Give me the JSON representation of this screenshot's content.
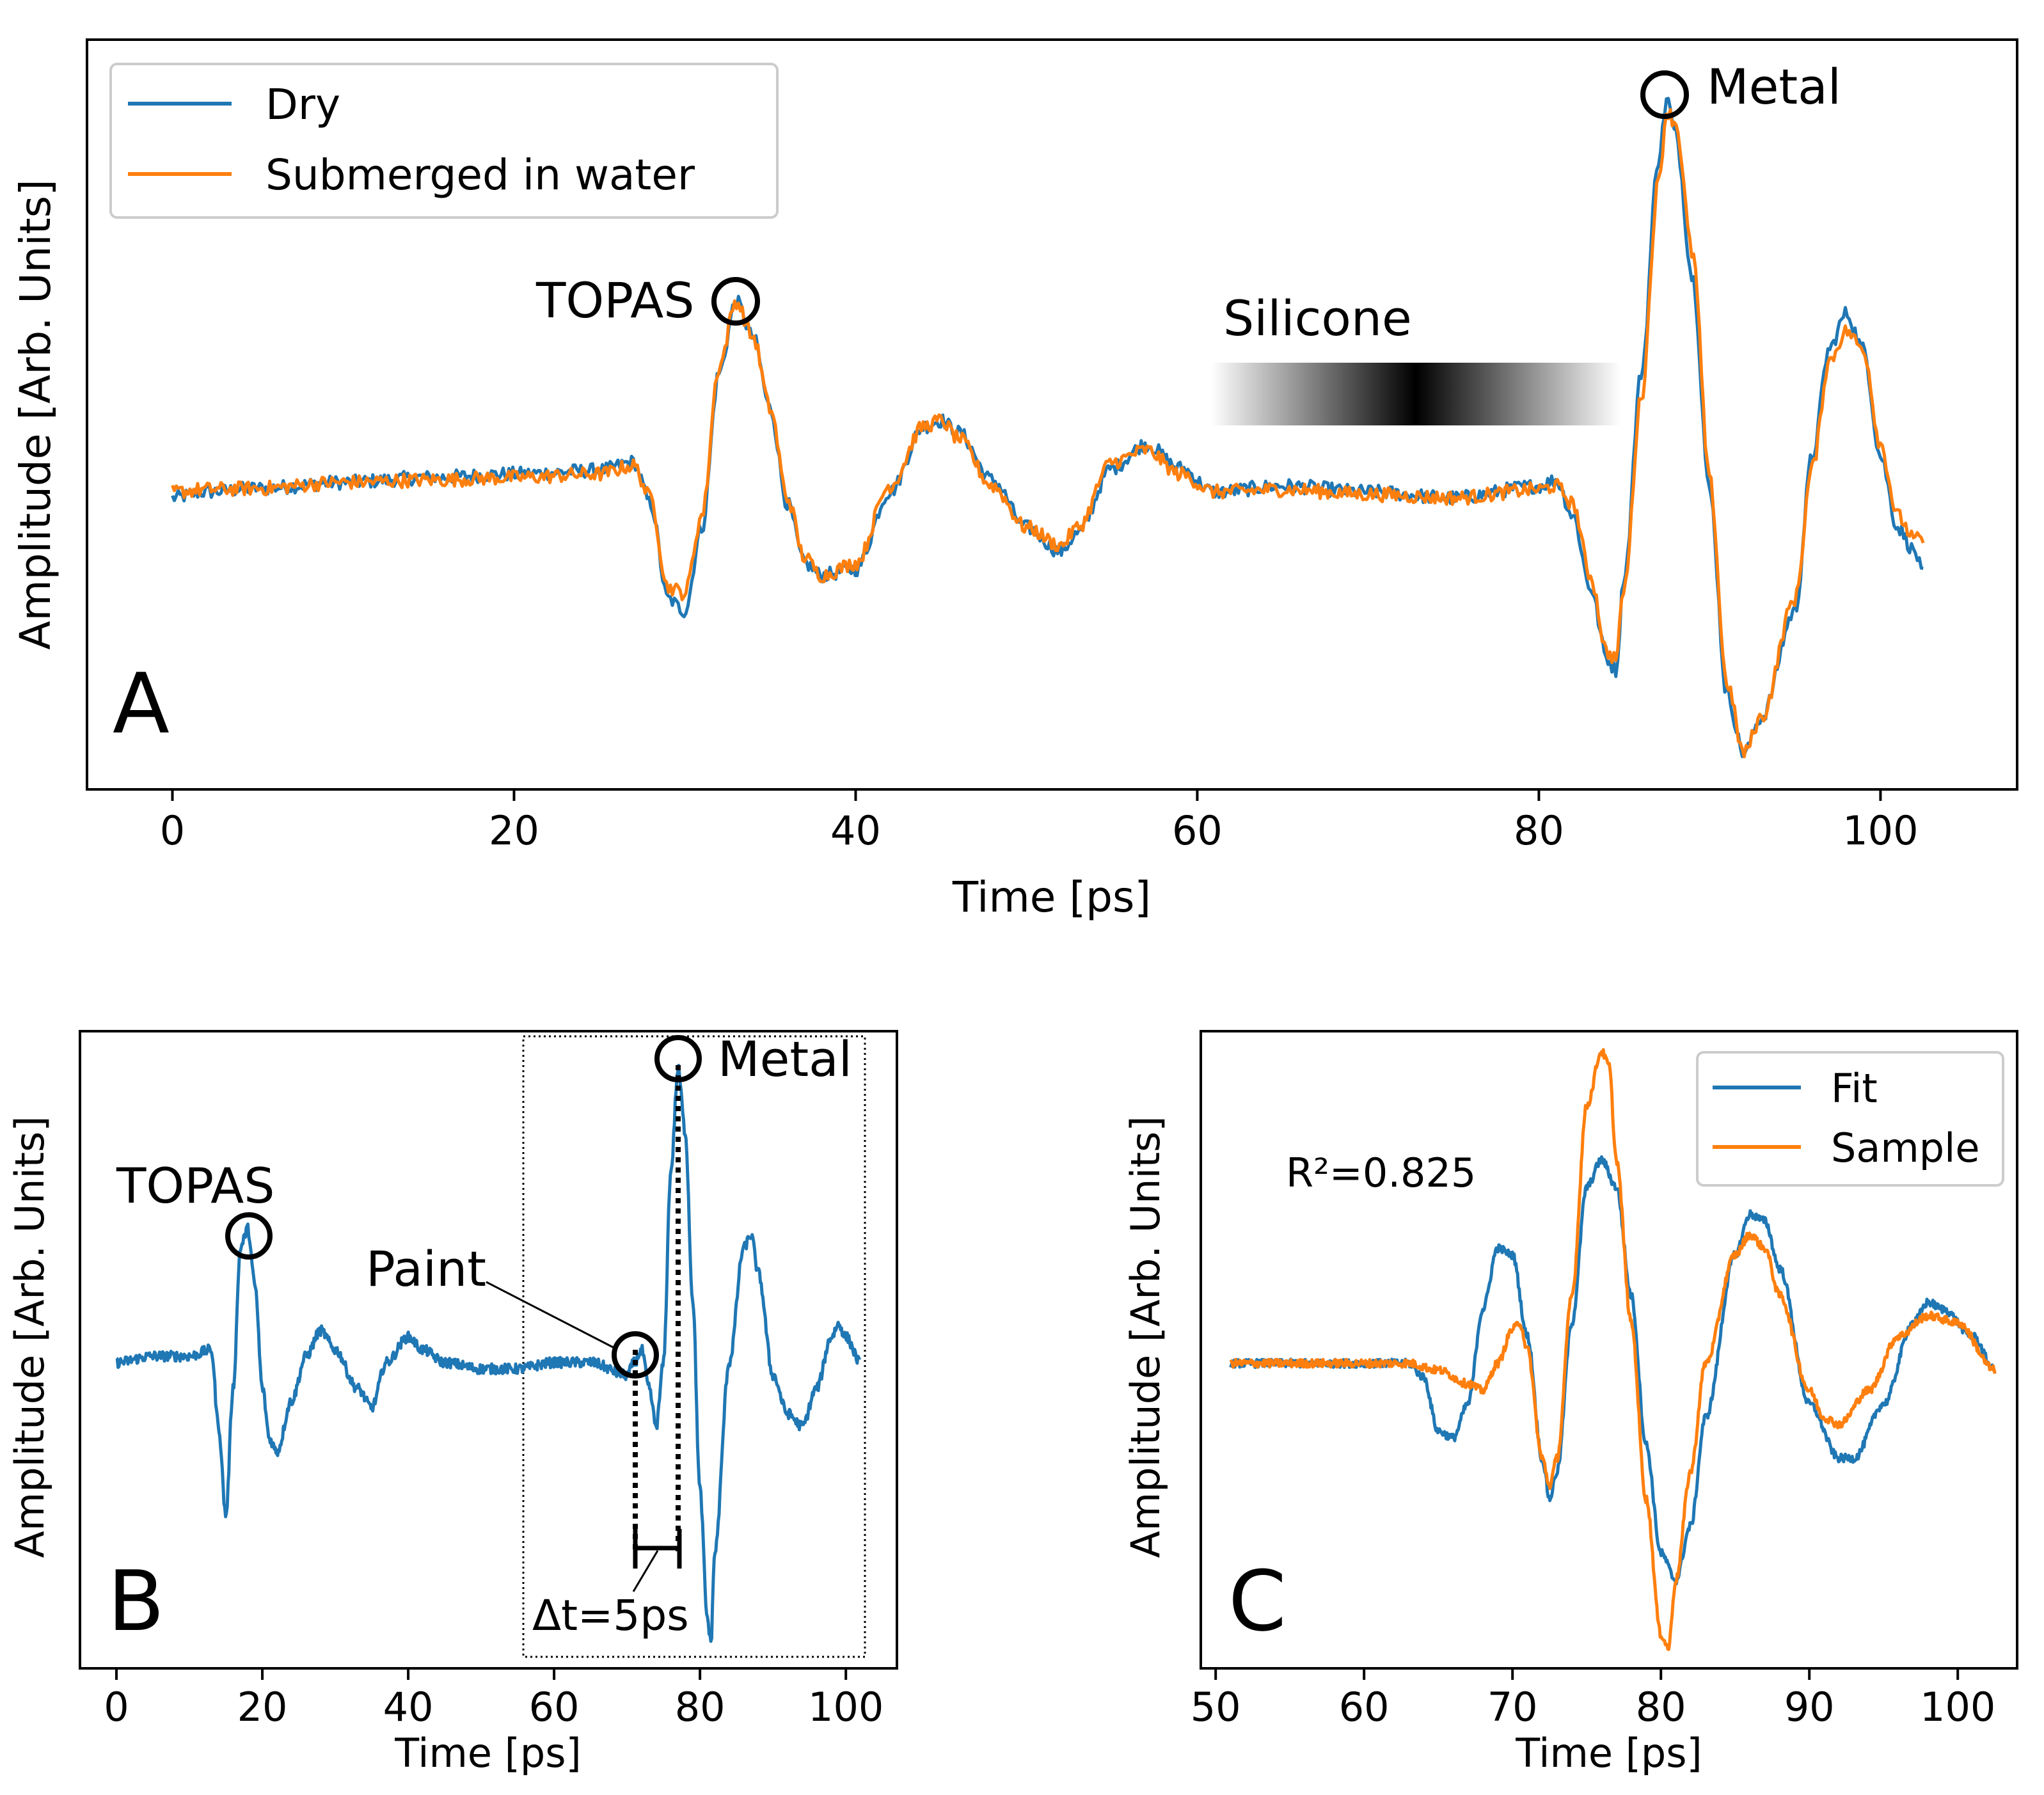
{
  "colors": {
    "dry": "#1f77b4",
    "water": "#ff7f0e",
    "fit": "#1f77b4",
    "sample": "#ff7f0e"
  },
  "chart_data": [
    {
      "type": "line",
      "panel": "A",
      "xlabel": "Time [ps]",
      "ylabel": "Amplitude [Arb. Units]",
      "xlim": [
        -5,
        108
      ],
      "ylim": [
        -2.5,
        3.8
      ],
      "xticks": [
        0,
        20,
        40,
        60,
        80,
        100
      ],
      "legend": {
        "placement": "top-left"
      },
      "annotations": {
        "topas": "TOPAS",
        "silicone": "Silicone",
        "metal": "Metal"
      },
      "series": [
        {
          "name": "Dry",
          "keypoints": [
            [
              0,
              -0.05
            ],
            [
              2,
              0
            ],
            [
              5,
              0.03
            ],
            [
              10,
              0.08
            ],
            [
              15,
              0.12
            ],
            [
              20,
              0.15
            ],
            [
              25,
              0.18
            ],
            [
              27,
              0.25
            ],
            [
              28,
              -0.1
            ],
            [
              29,
              -0.9
            ],
            [
              30,
              -1.0
            ],
            [
              31,
              -0.3
            ],
            [
              32,
              1.0
            ],
            [
              33,
              1.6
            ],
            [
              34,
              1.3
            ],
            [
              35,
              0.7
            ],
            [
              36,
              -0.1
            ],
            [
              37,
              -0.6
            ],
            [
              38,
              -0.7
            ],
            [
              40,
              -0.65
            ],
            [
              42,
              0
            ],
            [
              44,
              0.55
            ],
            [
              45,
              0.6
            ],
            [
              46,
              0.5
            ],
            [
              48,
              0.1
            ],
            [
              50,
              -0.3
            ],
            [
              52,
              -0.5
            ],
            [
              53,
              -0.35
            ],
            [
              55,
              0.2
            ],
            [
              57,
              0.4
            ],
            [
              59,
              0.2
            ],
            [
              61,
              0
            ],
            [
              65,
              0.05
            ],
            [
              70,
              0
            ],
            [
              75,
              -0.05
            ],
            [
              80,
              0.05
            ],
            [
              81,
              0.1
            ],
            [
              82,
              -0.2
            ],
            [
              83,
              -0.8
            ],
            [
              84,
              -1.4
            ],
            [
              84.5,
              -1.5
            ],
            [
              85,
              -0.7
            ],
            [
              86,
              1.0
            ],
            [
              87,
              2.8
            ],
            [
              87.5,
              3.3
            ],
            [
              88,
              3.0
            ],
            [
              89,
              1.8
            ],
            [
              90,
              0
            ],
            [
              91,
              -1.7
            ],
            [
              92,
              -2.2
            ],
            [
              93,
              -1.9
            ],
            [
              95,
              -1.0
            ],
            [
              96,
              0.3
            ],
            [
              97,
              1.2
            ],
            [
              98,
              1.5
            ],
            [
              99,
              1.2
            ],
            [
              100,
              0.3
            ],
            [
              101,
              -0.3
            ],
            [
              102,
              -0.5
            ],
            [
              102.5,
              -0.7
            ]
          ]
        },
        {
          "name": "Submerged in water",
          "keypoints": [
            [
              0,
              0
            ],
            [
              2,
              0.02
            ],
            [
              5,
              0.03
            ],
            [
              10,
              0.08
            ],
            [
              15,
              0.1
            ],
            [
              20,
              0.12
            ],
            [
              25,
              0.15
            ],
            [
              27,
              0.22
            ],
            [
              28,
              -0.05
            ],
            [
              29,
              -0.8
            ],
            [
              30,
              -0.85
            ],
            [
              31,
              -0.2
            ],
            [
              32,
              1.05
            ],
            [
              33,
              1.6
            ],
            [
              34,
              1.3
            ],
            [
              35,
              0.7
            ],
            [
              36,
              -0.05
            ],
            [
              37,
              -0.55
            ],
            [
              38,
              -0.7
            ],
            [
              40,
              -0.6
            ],
            [
              42,
              0.05
            ],
            [
              44,
              0.55
            ],
            [
              45,
              0.6
            ],
            [
              46,
              0.45
            ],
            [
              48,
              0.05
            ],
            [
              50,
              -0.3
            ],
            [
              52,
              -0.45
            ],
            [
              53,
              -0.3
            ],
            [
              55,
              0.25
            ],
            [
              57,
              0.35
            ],
            [
              59,
              0.15
            ],
            [
              61,
              0
            ],
            [
              65,
              0.02
            ],
            [
              70,
              -0.02
            ],
            [
              75,
              -0.05
            ],
            [
              80,
              0.02
            ],
            [
              81,
              0.05
            ],
            [
              82,
              -0.1
            ],
            [
              83,
              -0.7
            ],
            [
              84,
              -1.35
            ],
            [
              84.5,
              -1.4
            ],
            [
              85,
              -0.8
            ],
            [
              86,
              0.8
            ],
            [
              87,
              2.6
            ],
            [
              87.5,
              3.2
            ],
            [
              88,
              3.1
            ],
            [
              89,
              2.0
            ],
            [
              90,
              0.1
            ],
            [
              91,
              -1.6
            ],
            [
              92,
              -2.2
            ],
            [
              93,
              -1.9
            ],
            [
              95,
              -0.9
            ],
            [
              96,
              0.2
            ],
            [
              97,
              1.1
            ],
            [
              98,
              1.35
            ],
            [
              99,
              1.2
            ],
            [
              100,
              0.4
            ],
            [
              101,
              -0.2
            ],
            [
              102,
              -0.4
            ],
            [
              102.5,
              -0.4
            ]
          ]
        }
      ]
    },
    {
      "type": "line",
      "panel": "B",
      "xlabel": "Time [ps]",
      "ylabel": "Amplitude [Arb. Units]",
      "xlim": [
        -5,
        107
      ],
      "ylim": [
        -2.4,
        2.6
      ],
      "xticks": [
        0,
        20,
        40,
        60,
        80,
        100
      ],
      "annotations": {
        "topas": "TOPAS",
        "paint": "Paint",
        "metal": "Metal",
        "delta": "Δt=5ps"
      },
      "series": [
        {
          "name": "Dry",
          "keypoints": [
            [
              0,
              0
            ],
            [
              5,
              0.05
            ],
            [
              10,
              0.05
            ],
            [
              13,
              0.1
            ],
            [
              14,
              -0.5
            ],
            [
              15,
              -1.2
            ],
            [
              16,
              -0.2
            ],
            [
              17,
              0.9
            ],
            [
              18,
              1.05
            ],
            [
              19,
              0.6
            ],
            [
              20,
              -0.2
            ],
            [
              21,
              -0.6
            ],
            [
              22,
              -0.7
            ],
            [
              24,
              -0.3
            ],
            [
              26,
              0.05
            ],
            [
              28,
              0.25
            ],
            [
              30,
              0.1
            ],
            [
              33,
              -0.2
            ],
            [
              35,
              -0.35
            ],
            [
              37,
              0
            ],
            [
              40,
              0.2
            ],
            [
              42,
              0.1
            ],
            [
              45,
              0
            ],
            [
              50,
              -0.05
            ],
            [
              55,
              -0.05
            ],
            [
              60,
              0
            ],
            [
              65,
              0
            ],
            [
              70,
              -0.1
            ],
            [
              71,
              0
            ],
            [
              72,
              0.1
            ],
            [
              73,
              -0.2
            ],
            [
              74,
              -0.5
            ],
            [
              75,
              0
            ],
            [
              76,
              1.5
            ],
            [
              77,
              2.3
            ],
            [
              78,
              1.8
            ],
            [
              79,
              0.5
            ],
            [
              80,
              -1.0
            ],
            [
              81,
              -2.0
            ],
            [
              81.5,
              -2.2
            ],
            [
              82,
              -1.5
            ],
            [
              84,
              0
            ],
            [
              86,
              0.9
            ],
            [
              87,
              1.0
            ],
            [
              88,
              0.7
            ],
            [
              90,
              -0.1
            ],
            [
              92,
              -0.4
            ],
            [
              94,
              -0.5
            ],
            [
              96,
              -0.2
            ],
            [
              98,
              0.2
            ],
            [
              99,
              0.3
            ],
            [
              100,
              0.2
            ],
            [
              102,
              0
            ]
          ]
        }
      ]
    },
    {
      "type": "line",
      "panel": "C",
      "xlabel": "Time [ps]",
      "ylabel": "Amplitude [Arb. Units]",
      "xlim": [
        49,
        104
      ],
      "ylim": [
        -2.25,
        2.45
      ],
      "xticks": [
        50,
        60,
        70,
        80,
        90,
        100
      ],
      "legend": {
        "placement": "top-right"
      },
      "r2": "R²=0.825",
      "series": [
        {
          "name": "Fit",
          "keypoints": [
            [
              51,
              0
            ],
            [
              55,
              0
            ],
            [
              60,
              0
            ],
            [
              63,
              0
            ],
            [
              64,
              -0.1
            ],
            [
              65,
              -0.5
            ],
            [
              66,
              -0.55
            ],
            [
              67,
              -0.3
            ],
            [
              68,
              0.4
            ],
            [
              69,
              0.85
            ],
            [
              70,
              0.8
            ],
            [
              71,
              0.2
            ],
            [
              72,
              -0.7
            ],
            [
              72.5,
              -1.0
            ],
            [
              73,
              -0.8
            ],
            [
              74,
              0.3
            ],
            [
              75,
              1.3
            ],
            [
              76,
              1.5
            ],
            [
              77,
              1.3
            ],
            [
              78,
              0.5
            ],
            [
              79,
              -0.6
            ],
            [
              80,
              -1.4
            ],
            [
              81,
              -1.6
            ],
            [
              82,
              -1.2
            ],
            [
              83,
              -0.4
            ],
            [
              85,
              0.8
            ],
            [
              86,
              1.1
            ],
            [
              87,
              1.05
            ],
            [
              88,
              0.7
            ],
            [
              90,
              -0.3
            ],
            [
              92,
              -0.7
            ],
            [
              93,
              -0.7
            ],
            [
              95,
              -0.3
            ],
            [
              97,
              0.3
            ],
            [
              98,
              0.45
            ],
            [
              99,
              0.4
            ],
            [
              101,
              0.2
            ],
            [
              102.5,
              -0.05
            ]
          ]
        },
        {
          "name": "Sample",
          "keypoints": [
            [
              51,
              0
            ],
            [
              55,
              0
            ],
            [
              60,
              0
            ],
            [
              63,
              0
            ],
            [
              65,
              -0.05
            ],
            [
              67,
              -0.15
            ],
            [
              68,
              -0.2
            ],
            [
              69,
              0
            ],
            [
              70,
              0.25
            ],
            [
              70.5,
              0.3
            ],
            [
              71,
              0.1
            ],
            [
              72,
              -0.7
            ],
            [
              72.5,
              -0.9
            ],
            [
              73,
              -0.7
            ],
            [
              74,
              0.5
            ],
            [
              75,
              1.9
            ],
            [
              76,
              2.3
            ],
            [
              76.5,
              2.2
            ],
            [
              77,
              1.5
            ],
            [
              78,
              0.3
            ],
            [
              79,
              -1.0
            ],
            [
              80,
              -2.0
            ],
            [
              80.5,
              -2.1
            ],
            [
              81,
              -1.6
            ],
            [
              82,
              -0.8
            ],
            [
              83,
              0
            ],
            [
              85,
              0.8
            ],
            [
              86,
              0.95
            ],
            [
              87,
              0.85
            ],
            [
              88,
              0.5
            ],
            [
              90,
              -0.2
            ],
            [
              91,
              -0.4
            ],
            [
              92,
              -0.45
            ],
            [
              94,
              -0.2
            ],
            [
              96,
              0.2
            ],
            [
              98,
              0.35
            ],
            [
              100,
              0.3
            ],
            [
              102.5,
              -0.05
            ]
          ]
        }
      ]
    }
  ]
}
